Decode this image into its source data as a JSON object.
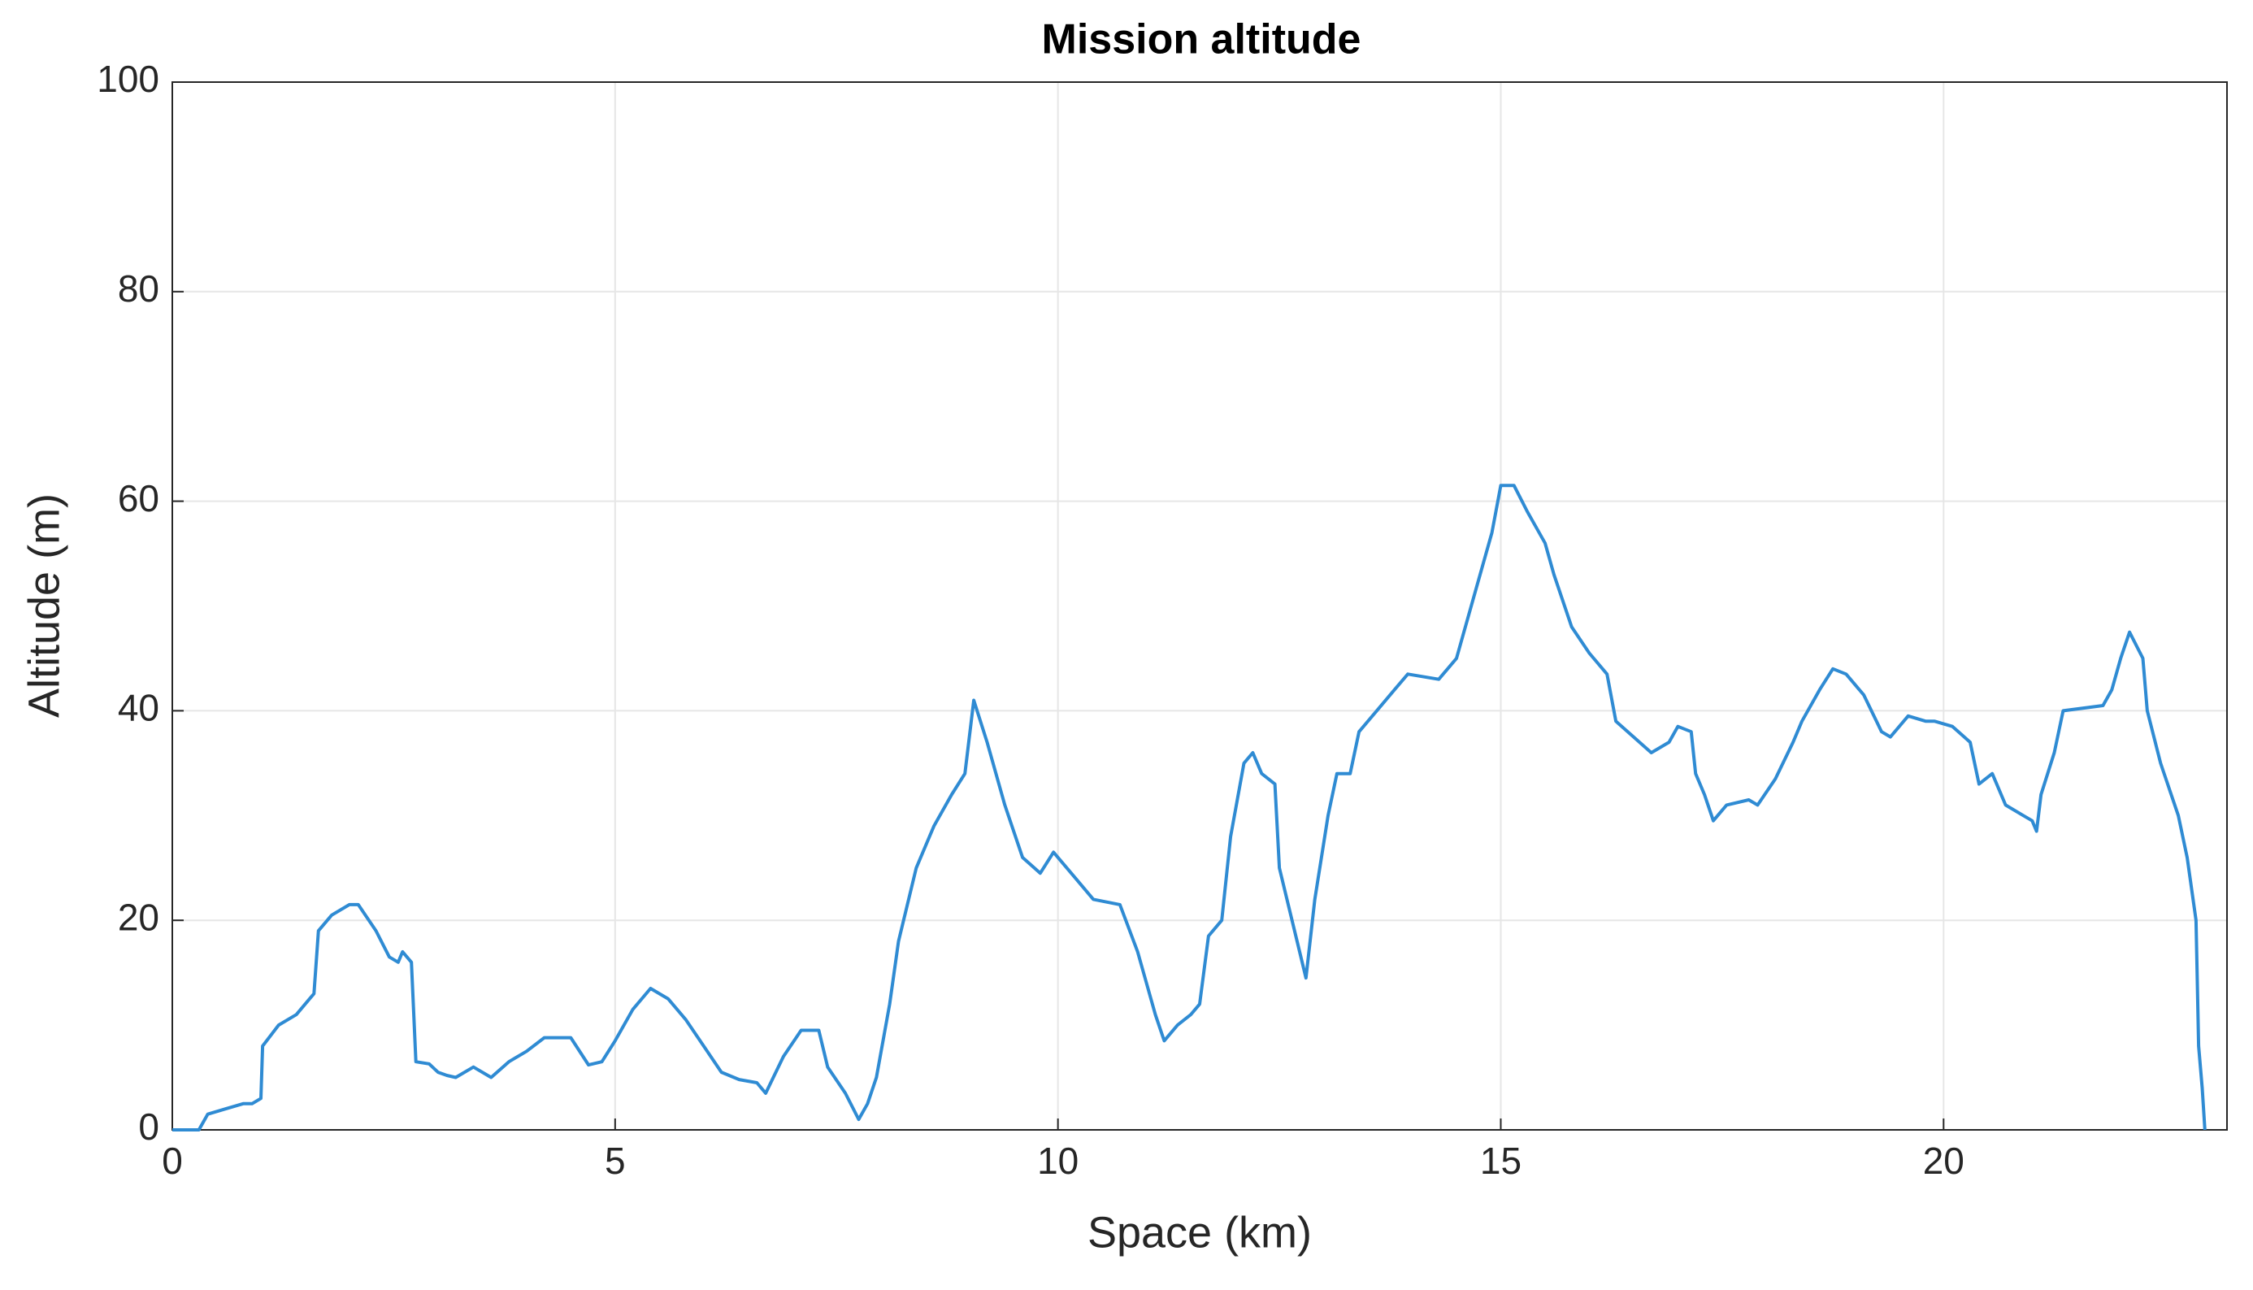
{
  "chart_data": {
    "type": "line",
    "title": "Mission altitude",
    "x_label": "Space (km)",
    "y_label": "Altitude (m)",
    "color": "#2f8bd3",
    "grid": true,
    "xlim": [
      0,
      23.2
    ],
    "xticks": [
      0,
      5,
      10,
      15,
      20
    ],
    "ylim": [
      0,
      100
    ],
    "yticks": [
      0,
      20,
      40,
      60,
      80,
      100
    ],
    "x": [
      0,
      0.3,
      0.4,
      0.6,
      0.8,
      0.9,
      1.0,
      1.02,
      1.2,
      1.4,
      1.5,
      1.6,
      1.65,
      1.8,
      2.0,
      2.1,
      2.3,
      2.45,
      2.55,
      2.6,
      2.7,
      2.75,
      2.9,
      3.0,
      3.1,
      3.2,
      3.4,
      3.6,
      3.8,
      4.0,
      4.2,
      4.5,
      4.7,
      4.85,
      5.0,
      5.2,
      5.4,
      5.6,
      5.8,
      6.0,
      6.2,
      6.4,
      6.6,
      6.7,
      6.9,
      7.1,
      7.3,
      7.4,
      7.6,
      7.75,
      7.85,
      7.95,
      8.1,
      8.2,
      8.4,
      8.6,
      8.8,
      8.95,
      9.05,
      9.2,
      9.4,
      9.6,
      9.8,
      9.95,
      10.2,
      10.4,
      10.7,
      10.9,
      11.0,
      11.1,
      11.2,
      11.35,
      11.5,
      11.6,
      11.7,
      11.85,
      11.95,
      12.1,
      12.2,
      12.3,
      12.45,
      12.5,
      12.7,
      12.8,
      12.9,
      13.05,
      13.15,
      13.3,
      13.4,
      13.6,
      13.8,
      13.95,
      14.3,
      14.5,
      14.7,
      14.9,
      15.0,
      15.15,
      15.3,
      15.5,
      15.6,
      15.8,
      16.0,
      16.2,
      16.3,
      16.5,
      16.7,
      16.9,
      17.0,
      17.15,
      17.2,
      17.3,
      17.4,
      17.55,
      17.8,
      17.9,
      18.1,
      18.3,
      18.4,
      18.6,
      18.75,
      18.9,
      19.1,
      19.3,
      19.4,
      19.6,
      19.8,
      19.9,
      20.1,
      20.3,
      20.4,
      20.55,
      20.7,
      20.9,
      21.0,
      21.05,
      21.1,
      21.25,
      21.35,
      21.8,
      21.9,
      22.0,
      22.1,
      22.25,
      22.3,
      22.45,
      22.65,
      22.75,
      22.85,
      22.88,
      22.92,
      22.95
    ],
    "values": [
      0,
      0,
      1.5,
      2,
      2.5,
      2.5,
      3,
      8,
      10,
      11,
      12,
      13,
      19,
      20.5,
      21.5,
      21.5,
      19,
      16.5,
      16,
      17,
      16,
      6.5,
      6.3,
      5.5,
      5.2,
      5,
      6,
      5,
      6.5,
      7.5,
      8.8,
      8.8,
      6.2,
      6.5,
      8.5,
      11.5,
      13.5,
      12.5,
      10.5,
      8,
      5.5,
      4.8,
      4.5,
      3.5,
      7,
      9.5,
      9.5,
      6,
      3.5,
      1,
      2.5,
      5,
      12,
      18,
      25,
      29,
      32,
      34,
      41,
      37,
      31,
      26,
      24.5,
      26.5,
      24,
      22,
      21.5,
      17,
      14,
      11,
      8.5,
      10,
      11,
      12,
      18.5,
      20,
      28,
      35,
      36,
      34,
      33,
      25,
      18,
      14.5,
      22,
      30,
      34,
      34,
      38,
      40,
      42,
      43.5,
      43,
      45,
      51,
      57,
      61.5,
      61.5,
      59,
      56,
      53,
      48,
      45.5,
      43.5,
      39,
      37.5,
      36,
      37,
      38.5,
      38,
      34,
      32,
      29.5,
      31,
      31.5,
      31,
      33.5,
      37,
      39,
      42,
      44,
      43.5,
      41.5,
      38,
      37.5,
      39.5,
      39,
      39,
      38.5,
      37,
      33,
      34,
      31,
      30,
      29.5,
      28.5,
      32,
      36,
      40,
      40.5,
      42,
      45,
      47.5,
      45,
      40,
      35,
      30,
      26,
      20,
      8,
      4,
      0
    ]
  }
}
